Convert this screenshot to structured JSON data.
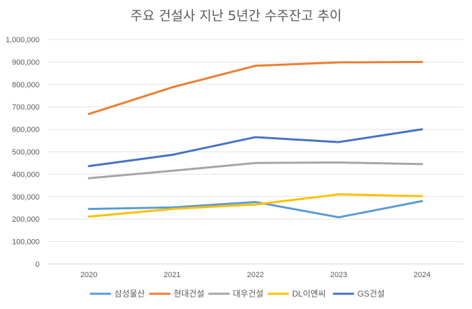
{
  "chart_data": {
    "type": "line",
    "title": "주요 건설사 지난 5년간 수주잔고 추이",
    "xlabel": "",
    "ylabel": "",
    "categories": [
      "2020",
      "2021",
      "2022",
      "2023",
      "2024"
    ],
    "ylim": [
      0,
      1000000
    ],
    "yticks": [
      0,
      100000,
      200000,
      300000,
      400000,
      500000,
      600000,
      700000,
      800000,
      900000,
      1000000
    ],
    "ytick_labels": [
      "0",
      "100,000",
      "200,000",
      "300,000",
      "400,000",
      "500,000",
      "600,000",
      "700,000",
      "800,000",
      "900,000",
      "1,000,000"
    ],
    "grid": true,
    "legend_position": "bottom",
    "series": [
      {
        "name": "삼성물산",
        "color": "#5B9BD5",
        "values": [
          245000,
          252000,
          276000,
          208000,
          280000
        ]
      },
      {
        "name": "현대건설",
        "color": "#ED7D31",
        "values": [
          668000,
          787000,
          883000,
          898000,
          900000
        ]
      },
      {
        "name": "대우건설",
        "color": "#A5A5A5",
        "values": [
          382000,
          415000,
          450000,
          452000,
          445000
        ]
      },
      {
        "name": "DL이앤씨",
        "color": "#FFC000",
        "values": [
          211000,
          245000,
          265000,
          310000,
          302000
        ]
      },
      {
        "name": "GS건설",
        "color": "#4472C4",
        "values": [
          436000,
          486000,
          565000,
          543000,
          600000
        ]
      }
    ]
  }
}
